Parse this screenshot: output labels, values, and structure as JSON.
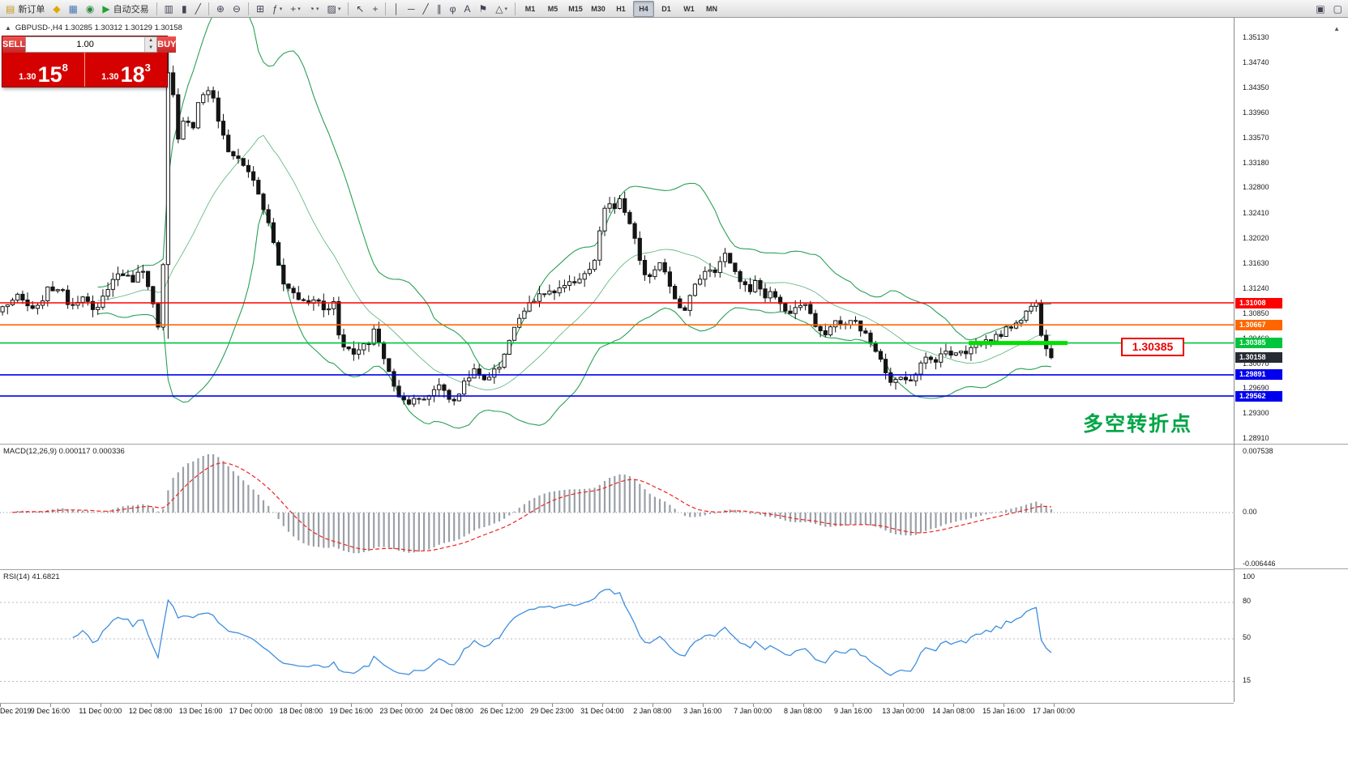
{
  "icons": {
    "collapse": "▲",
    "dropdown": "▾",
    "spin_up": "▲",
    "spin_down": "▼",
    "axis_arrow": "▲"
  },
  "colors": {
    "bull": "#ffffff",
    "bear": "#141414",
    "wick": "#141414",
    "bollinger": "#2aa055",
    "macd_hist": "#9aa0a6",
    "macd_signal": "#ee2222",
    "rsi": "#3f8ede",
    "current_badge": "#262a33",
    "zero_line": "#8a8a9a",
    "rsi_level": "#b8b8c8"
  },
  "toolbar": {
    "timeframes": [
      "M1",
      "M5",
      "M15",
      "M30",
      "H1",
      "H4",
      "D1",
      "W1",
      "MN"
    ],
    "active_timeframe": "H4",
    "groups": [
      {
        "type": "button",
        "name": "new-order-button",
        "icon_name": "new-order-icon",
        "label": "新订单",
        "glyph": "▤",
        "glyph_color": "#c89a1e"
      },
      {
        "type": "icons",
        "items": [
          {
            "name": "metaeditor-icon",
            "glyph": "◆",
            "color": "#e0a800"
          },
          {
            "name": "market-watch-icon",
            "glyph": "▦",
            "color": "#4a7ab5"
          },
          {
            "name": "navigator-icon",
            "glyph": "◉",
            "color": "#2d8a46"
          }
        ]
      },
      {
        "type": "button",
        "name": "auto-trading-button",
        "icon_name": "auto-trading-play-icon",
        "label": "自动交易",
        "glyph": "▶",
        "glyph_color": "#1fa32c"
      },
      {
        "type": "sep"
      },
      {
        "type": "icons",
        "items": [
          {
            "name": "bar-chart-icon",
            "glyph": "▥"
          },
          {
            "name": "candlestick-chart-icon",
            "glyph": "▮"
          },
          {
            "name": "line-chart-icon",
            "glyph": "╱"
          }
        ]
      },
      {
        "type": "sep"
      },
      {
        "type": "icons",
        "items": [
          {
            "name": "zoom-in-icon",
            "glyph": "⊕"
          },
          {
            "name": "zoom-out-icon",
            "glyph": "⊖"
          }
        ]
      },
      {
        "type": "sep"
      },
      {
        "type": "icons",
        "items": [
          {
            "name": "tile-windows-icon",
            "glyph": "⊞"
          },
          {
            "name": "indicators-icon",
            "glyph": "ƒ",
            "arrow": true
          },
          {
            "name": "new-chart-icon",
            "glyph": "+",
            "arrow": true
          },
          {
            "name": "periods-icon",
            "glyph": "◔",
            "arrow": true
          },
          {
            "name": "templates-icon",
            "glyph": "▨",
            "arrow": true
          }
        ]
      },
      {
        "type": "sep"
      },
      {
        "type": "icons",
        "items": [
          {
            "name": "cursor-icon",
            "glyph": "↖"
          },
          {
            "name": "crosshair-icon",
            "glyph": "+"
          }
        ]
      },
      {
        "type": "sep"
      },
      {
        "type": "icons",
        "items": [
          {
            "name": "vertical-line-icon",
            "glyph": "│"
          },
          {
            "name": "horizontal-line-icon",
            "glyph": "─"
          },
          {
            "name": "trendline-icon",
            "glyph": "╱"
          },
          {
            "name": "equidistant-channel-icon",
            "glyph": "∥"
          },
          {
            "name": "fibonacci-icon",
            "glyph": "φ"
          },
          {
            "name": "text-icon",
            "glyph": "A"
          },
          {
            "name": "arrow-label-icon",
            "glyph": "⚑"
          },
          {
            "name": "shapes-icon",
            "glyph": "△",
            "arrow": true
          }
        ]
      },
      {
        "type": "sep"
      },
      {
        "type": "timeframes"
      },
      {
        "type": "spacer"
      },
      {
        "type": "icons",
        "items": [
          {
            "name": "chart-window-icon",
            "glyph": "▣"
          },
          {
            "name": "window-restore-icon",
            "glyph": "▢"
          }
        ]
      }
    ]
  },
  "chart": {
    "symbol_header": "GBPUSD-,H4  1.30285 1.30312 1.30129 1.30158",
    "trade_panel": {
      "sell_label": "SELL",
      "buy_label": "BUY",
      "volume": "1.00",
      "sell_price_small": "1.30",
      "sell_price_big": "15",
      "sell_price_sup": "8",
      "buy_price_small": "1.30",
      "buy_price_big": "18",
      "buy_price_sup": "3"
    },
    "annotation_label": "1.30385",
    "annotation_text": "多空转折点",
    "levels": [
      {
        "price": 1.31008,
        "label": "1.31008",
        "color": "#ff0000"
      },
      {
        "price": 1.30667,
        "label": "1.30667",
        "color": "#ff6600"
      },
      {
        "price": 1.30385,
        "label": "1.30385",
        "color": "#00c43c"
      },
      {
        "price": 1.29891,
        "label": "1.29891",
        "color": "#0000ee"
      },
      {
        "price": 1.29562,
        "label": "1.29562",
        "color": "#0000ee"
      }
    ],
    "current_price": {
      "value": 1.30158,
      "label": "1.30158"
    },
    "highlight_segment": {
      "price": 1.30385,
      "x_start": 0.785,
      "x_end": 0.865,
      "color": "#00e000"
    },
    "y_ticks": [
      "1.35130",
      "1.34740",
      "1.34350",
      "1.33960",
      "1.33570",
      "1.33180",
      "1.32800",
      "1.32410",
      "1.32020",
      "1.31630",
      "1.31240",
      "1.30850",
      "1.30460",
      "1.30070",
      "1.29690",
      "1.29300",
      "1.28910"
    ],
    "x_ticks": [
      "Dec 2019",
      "9 Dec 16:00",
      "11 Dec 00:00",
      "12 Dec 08:00",
      "13 Dec 16:00",
      "17 Dec 00:00",
      "18 Dec 08:00",
      "19 Dec 16:00",
      "23 Dec 00:00",
      "24 Dec 08:00",
      "26 Dec 12:00",
      "29 Dec 23:00",
      "31 Dec 04:00",
      "2 Jan 08:00",
      "3 Jan 16:00",
      "7 Jan 00:00",
      "8 Jan 08:00",
      "9 Jan 16:00",
      "13 Jan 00:00",
      "14 Jan 08:00",
      "15 Jan 16:00",
      "17 Jan 00:00"
    ]
  },
  "indicators": {
    "macd": {
      "label": "MACD(12,26,9) 0.000117 0.000336",
      "y_ticks": [
        "0.007538",
        "0.00",
        "-0.006446"
      ]
    },
    "rsi": {
      "label": "RSI(14) 41.6821",
      "y_ticks": [
        "100",
        "80",
        "50",
        "15"
      ],
      "levels": [
        80,
        50,
        15
      ]
    }
  },
  "chart_data": {
    "type": "candlestick",
    "symbol": "GBPUSD-",
    "timeframe": "H4",
    "ohlc_header": {
      "open": 1.30285,
      "high": 1.30312,
      "low": 1.30129,
      "close": 1.30158
    },
    "ylim": [
      1.2891,
      1.3513
    ],
    "candle_count": 210,
    "spike": {
      "t": 0.157,
      "high": 1.3513,
      "low": 1.3045
    },
    "overlays": {
      "bollinger_period": 20,
      "bollinger_deviation": 2
    },
    "oscillators": {
      "macd": {
        "fast": 12,
        "slow": 26,
        "signal": 9,
        "current_main": 0.000117,
        "current_signal": 0.000336,
        "scale_max": 0.007538,
        "scale_min": -0.006446
      },
      "rsi": {
        "period": 14,
        "current": 41.6821
      }
    },
    "horizontal_levels": [
      1.31008,
      1.30667,
      1.30385,
      1.29891,
      1.29562
    ],
    "rsi_period": 14,
    "price_keypoints": [
      [
        0,
        1.3095
      ],
      [
        0.015,
        1.311
      ],
      [
        0.031,
        1.3085
      ],
      [
        0.042,
        1.312
      ],
      [
        0.054,
        1.3125
      ],
      [
        0.065,
        1.3095
      ],
      [
        0.077,
        1.3115
      ],
      [
        0.088,
        1.308
      ],
      [
        0.1,
        1.3125
      ],
      [
        0.112,
        1.315
      ],
      [
        0.123,
        1.3135
      ],
      [
        0.135,
        1.3155
      ],
      [
        0.142,
        1.311
      ],
      [
        0.148,
        1.306
      ],
      [
        0.152,
        1.307
      ],
      [
        0.157,
        1.346
      ],
      [
        0.162,
        1.343
      ],
      [
        0.168,
        1.3345
      ],
      [
        0.173,
        1.3395
      ],
      [
        0.181,
        1.337
      ],
      [
        0.188,
        1.342
      ],
      [
        0.198,
        1.3435
      ],
      [
        0.208,
        1.337
      ],
      [
        0.215,
        1.3335
      ],
      [
        0.223,
        1.333
      ],
      [
        0.231,
        1.331
      ],
      [
        0.238,
        1.33
      ],
      [
        0.246,
        1.3255
      ],
      [
        0.254,
        1.3225
      ],
      [
        0.262,
        1.3165
      ],
      [
        0.269,
        1.3125
      ],
      [
        0.277,
        1.312
      ],
      [
        0.285,
        1.3105
      ],
      [
        0.292,
        1.31
      ],
      [
        0.3,
        1.311
      ],
      [
        0.308,
        1.3085
      ],
      [
        0.315,
        1.311
      ],
      [
        0.319,
        1.306
      ],
      [
        0.327,
        1.303
      ],
      [
        0.335,
        1.302
      ],
      [
        0.342,
        1.303
      ],
      [
        0.35,
        1.304
      ],
      [
        0.355,
        1.3065
      ],
      [
        0.362,
        1.302
      ],
      [
        0.369,
        1.299
      ],
      [
        0.377,
        1.296
      ],
      [
        0.385,
        1.2945
      ],
      [
        0.392,
        1.2955
      ],
      [
        0.4,
        1.2945
      ],
      [
        0.408,
        1.296
      ],
      [
        0.415,
        1.2975
      ],
      [
        0.423,
        1.2965
      ],
      [
        0.429,
        1.294
      ],
      [
        0.435,
        1.296
      ],
      [
        0.442,
        1.2985
      ],
      [
        0.45,
        1.2995
      ],
      [
        0.458,
        1.298
      ],
      [
        0.465,
        1.299
      ],
      [
        0.473,
        1.3
      ],
      [
        0.481,
        1.3035
      ],
      [
        0.488,
        1.306
      ],
      [
        0.496,
        1.309
      ],
      [
        0.504,
        1.3105
      ],
      [
        0.512,
        1.311
      ],
      [
        0.519,
        1.312
      ],
      [
        0.527,
        1.3115
      ],
      [
        0.535,
        1.3125
      ],
      [
        0.542,
        1.313
      ],
      [
        0.55,
        1.314
      ],
      [
        0.558,
        1.315
      ],
      [
        0.565,
        1.3165
      ],
      [
        0.571,
        1.323
      ],
      [
        0.577,
        1.3255
      ],
      [
        0.583,
        1.3245
      ],
      [
        0.588,
        1.326
      ],
      [
        0.594,
        1.324
      ],
      [
        0.6,
        1.3215
      ],
      [
        0.608,
        1.3165
      ],
      [
        0.615,
        1.3135
      ],
      [
        0.623,
        1.315
      ],
      [
        0.629,
        1.3165
      ],
      [
        0.635,
        1.3135
      ],
      [
        0.642,
        1.3105
      ],
      [
        0.65,
        1.309
      ],
      [
        0.658,
        1.312
      ],
      [
        0.665,
        1.314
      ],
      [
        0.673,
        1.3155
      ],
      [
        0.681,
        1.315
      ],
      [
        0.688,
        1.318
      ],
      [
        0.696,
        1.315
      ],
      [
        0.704,
        1.3135
      ],
      [
        0.712,
        1.312
      ],
      [
        0.719,
        1.3135
      ],
      [
        0.727,
        1.311
      ],
      [
        0.735,
        1.312
      ],
      [
        0.742,
        1.3095
      ],
      [
        0.75,
        1.3085
      ],
      [
        0.758,
        1.3095
      ],
      [
        0.765,
        1.31
      ],
      [
        0.773,
        1.307
      ],
      [
        0.781,
        1.305
      ],
      [
        0.788,
        1.306
      ],
      [
        0.796,
        1.3075
      ],
      [
        0.804,
        1.3065
      ],
      [
        0.812,
        1.3075
      ],
      [
        0.819,
        1.306
      ],
      [
        0.827,
        1.304
      ],
      [
        0.835,
        1.302
      ],
      [
        0.842,
        1.299
      ],
      [
        0.85,
        1.2975
      ],
      [
        0.858,
        1.299
      ],
      [
        0.865,
        1.298
      ],
      [
        0.873,
        1.3
      ],
      [
        0.881,
        1.3015
      ],
      [
        0.888,
        1.301
      ],
      [
        0.896,
        1.3025
      ],
      [
        0.904,
        1.302
      ],
      [
        0.912,
        1.303
      ],
      [
        0.919,
        1.3025
      ],
      [
        0.927,
        1.3035
      ],
      [
        0.935,
        1.304
      ],
      [
        0.942,
        1.3045
      ],
      [
        0.95,
        1.305
      ],
      [
        0.958,
        1.306
      ],
      [
        0.965,
        1.307
      ],
      [
        0.973,
        1.308
      ],
      [
        0.978,
        1.309
      ],
      [
        0.985,
        1.3105
      ],
      [
        0.991,
        1.305
      ],
      [
        1,
        1.30158
      ]
    ]
  }
}
